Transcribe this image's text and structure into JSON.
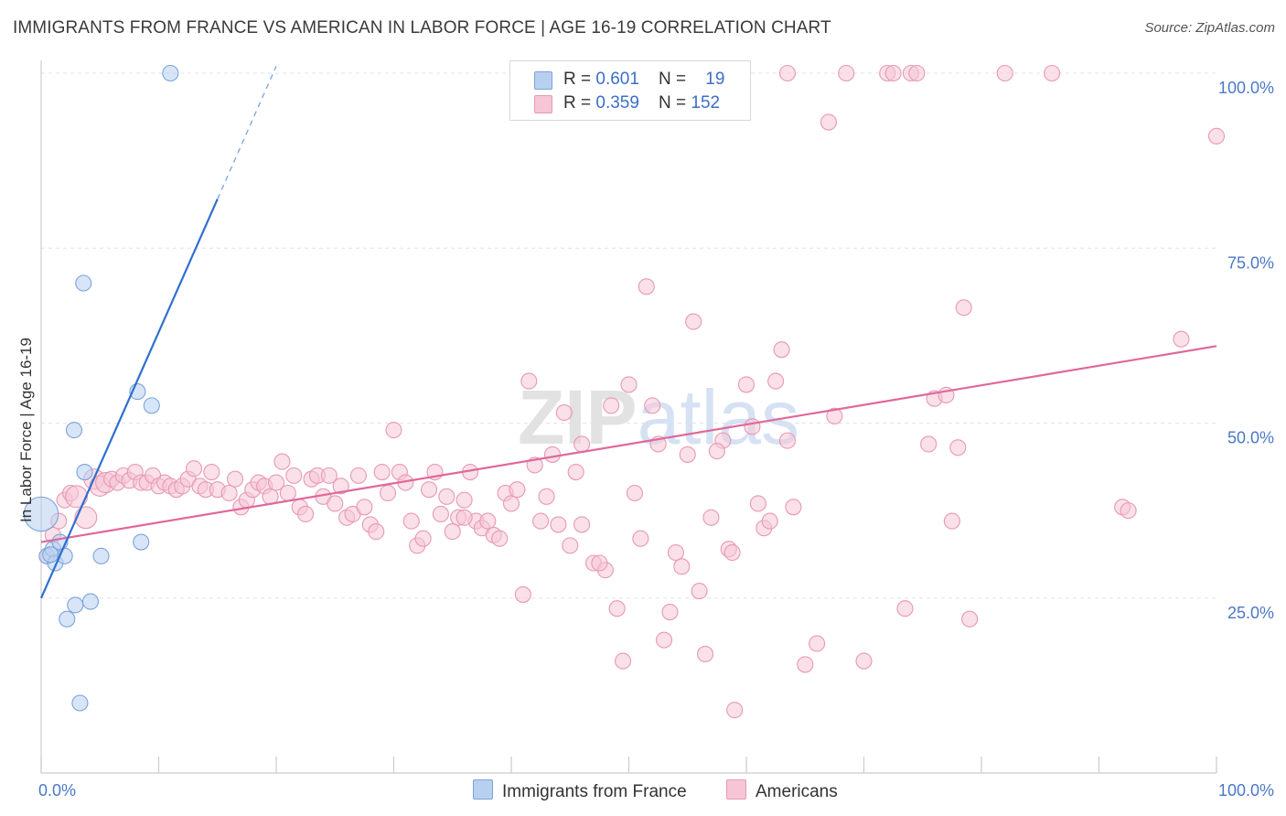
{
  "title": "IMMIGRANTS FROM FRANCE VS AMERICAN IN LABOR FORCE | AGE 16-19 CORRELATION CHART",
  "source": "Source: ZipAtlas.com",
  "watermark": "ZIPatlas",
  "colors": {
    "blue_fill": "#b8d0f0",
    "blue_stroke": "#7aa3dc",
    "blue_line": "#2f6fcf",
    "pink_fill": "#f6c6d6",
    "pink_stroke": "#e898b4",
    "pink_line": "#e0689a",
    "accent_text": "#3b6fc8"
  },
  "legend": {
    "rows": [
      {
        "r_label": "R = ",
        "r_value": "0.601",
        "n_label": "N = ",
        "n_value": "19",
        "color": "blue"
      },
      {
        "r_label": "R = ",
        "r_value": "0.359",
        "n_label": "N = ",
        "n_value": "152",
        "color": "pink"
      }
    ]
  },
  "bottom_legend": {
    "series1": "Immigrants from France",
    "series2": "Americans"
  },
  "chart_data": {
    "type": "scatter",
    "xlabel": "",
    "ylabel": "In Labor Force | Age 16-19",
    "xlim": [
      0,
      100
    ],
    "ylim": [
      0,
      105
    ],
    "x_tick_labels": [
      "0.0%",
      "100.0%"
    ],
    "y_tick_labels": [
      "25.0%",
      "50.0%",
      "75.0%",
      "100.0%"
    ],
    "y_ticks": [
      25,
      50,
      75,
      100
    ],
    "grid": true,
    "legend_position": "top-center",
    "series": [
      {
        "name": "Immigrants from France",
        "color": "blue",
        "trend": {
          "x0": 0.0,
          "y0": 25.0,
          "x1": 15.0,
          "y1": 82.0,
          "dash_x1": 20.0,
          "dash_y1": 101.0
        },
        "points": [
          [
            0.0,
            37.0,
            2.2
          ],
          [
            0.5,
            31.0,
            1
          ],
          [
            1.0,
            32.0,
            1
          ],
          [
            1.2,
            30.0,
            1
          ],
          [
            1.6,
            33.0,
            1
          ],
          [
            2.0,
            31.0,
            1
          ],
          [
            2.2,
            22.0,
            1
          ],
          [
            2.8,
            49.0,
            1
          ],
          [
            2.9,
            24.0,
            1
          ],
          [
            3.3,
            10.0,
            1
          ],
          [
            3.6,
            70.0,
            1
          ],
          [
            3.7,
            43.0,
            1
          ],
          [
            4.2,
            24.5,
            1
          ],
          [
            5.1,
            31.0,
            1
          ],
          [
            8.2,
            54.5,
            1
          ],
          [
            8.5,
            33.0,
            1
          ],
          [
            9.4,
            52.5,
            1
          ],
          [
            11.0,
            100.0,
            1
          ],
          [
            0.8,
            31.2,
            1
          ]
        ]
      },
      {
        "name": "Americans",
        "color": "pink",
        "trend": {
          "x0": 0.0,
          "y0": 33.0,
          "x1": 100.0,
          "y1": 61.0
        },
        "points": [
          [
            0.5,
            31.0,
            1
          ],
          [
            1.0,
            34.0,
            1
          ],
          [
            1.5,
            36.0,
            1
          ],
          [
            2.0,
            39.0,
            1
          ],
          [
            2.5,
            40.0,
            1
          ],
          [
            3.0,
            39.5,
            1.4
          ],
          [
            3.8,
            36.5,
            1.4
          ],
          [
            4.5,
            42.0,
            1.3
          ],
          [
            5.0,
            41.0,
            1.3
          ],
          [
            5.5,
            41.5,
            1.3
          ],
          [
            6.0,
            42.0,
            1
          ],
          [
            6.5,
            41.5,
            1
          ],
          [
            7.0,
            42.5,
            1
          ],
          [
            7.5,
            41.8,
            1
          ],
          [
            8.0,
            43.0,
            1
          ],
          [
            8.5,
            41.5,
            1
          ],
          [
            9.0,
            41.5,
            1
          ],
          [
            9.5,
            42.5,
            1
          ],
          [
            10.0,
            41.0,
            1
          ],
          [
            10.5,
            41.5,
            1
          ],
          [
            11.0,
            41.0,
            1
          ],
          [
            11.5,
            40.5,
            1
          ],
          [
            12.0,
            41.0,
            1
          ],
          [
            12.5,
            42.0,
            1
          ],
          [
            13.0,
            43.5,
            1
          ],
          [
            13.5,
            41.0,
            1
          ],
          [
            14.0,
            40.5,
            1
          ],
          [
            14.5,
            43.0,
            1
          ],
          [
            15.0,
            40.5,
            1
          ],
          [
            16.0,
            40.0,
            1
          ],
          [
            16.5,
            42.0,
            1
          ],
          [
            17.0,
            38.0,
            1
          ],
          [
            17.5,
            39.0,
            1
          ],
          [
            18.0,
            40.5,
            1
          ],
          [
            18.5,
            41.5,
            1
          ],
          [
            19.0,
            41.0,
            1
          ],
          [
            19.5,
            39.5,
            1
          ],
          [
            20.0,
            41.5,
            1
          ],
          [
            20.5,
            44.5,
            1
          ],
          [
            21.0,
            40.0,
            1
          ],
          [
            21.5,
            42.5,
            1
          ],
          [
            22.0,
            38.0,
            1
          ],
          [
            22.5,
            37.0,
            1
          ],
          [
            23.0,
            42.0,
            1
          ],
          [
            23.5,
            42.5,
            1
          ],
          [
            24.0,
            39.5,
            1
          ],
          [
            24.5,
            42.5,
            1
          ],
          [
            25.0,
            38.5,
            1
          ],
          [
            25.5,
            41.0,
            1
          ],
          [
            26.0,
            36.5,
            1
          ],
          [
            26.5,
            37.0,
            1
          ],
          [
            27.0,
            42.5,
            1
          ],
          [
            27.5,
            38.0,
            1
          ],
          [
            28.0,
            35.5,
            1
          ],
          [
            28.5,
            34.5,
            1
          ],
          [
            29.0,
            43.0,
            1
          ],
          [
            29.5,
            40.0,
            1
          ],
          [
            30.0,
            49.0,
            1
          ],
          [
            30.5,
            43.0,
            1
          ],
          [
            31.0,
            41.5,
            1
          ],
          [
            31.5,
            36.0,
            1
          ],
          [
            32.0,
            32.5,
            1
          ],
          [
            32.5,
            33.5,
            1
          ],
          [
            33.0,
            40.5,
            1
          ],
          [
            33.5,
            43.0,
            1
          ],
          [
            34.0,
            37.0,
            1
          ],
          [
            34.5,
            39.5,
            1
          ],
          [
            35.0,
            34.5,
            1
          ],
          [
            35.5,
            36.5,
            1
          ],
          [
            36.0,
            39.0,
            1
          ],
          [
            36.5,
            43.0,
            1
          ],
          [
            37.0,
            36.0,
            1
          ],
          [
            37.5,
            35.0,
            1
          ],
          [
            38.0,
            36.0,
            1
          ],
          [
            38.5,
            34.0,
            1
          ],
          [
            39.0,
            33.5,
            1
          ],
          [
            39.5,
            40.0,
            1
          ],
          [
            40.0,
            38.5,
            1
          ],
          [
            40.5,
            40.5,
            1
          ],
          [
            41.0,
            25.5,
            1
          ],
          [
            41.5,
            56.0,
            1
          ],
          [
            42.0,
            44.0,
            1
          ],
          [
            42.5,
            36.0,
            1
          ],
          [
            43.0,
            39.5,
            1
          ],
          [
            43.5,
            45.5,
            1
          ],
          [
            44.0,
            35.5,
            1
          ],
          [
            44.5,
            51.5,
            1
          ],
          [
            45.0,
            32.5,
            1
          ],
          [
            45.5,
            43.0,
            1
          ],
          [
            46.0,
            35.5,
            1
          ],
          [
            47.0,
            30.0,
            1
          ],
          [
            48.0,
            29.0,
            1
          ],
          [
            48.5,
            52.5,
            1
          ],
          [
            49.0,
            23.5,
            1
          ],
          [
            49.5,
            16.0,
            1
          ],
          [
            50.0,
            55.5,
            1
          ],
          [
            50.5,
            40.0,
            1
          ],
          [
            51.0,
            33.5,
            1
          ],
          [
            51.5,
            69.5,
            1
          ],
          [
            52.0,
            52.5,
            1
          ],
          [
            52.5,
            47.0,
            1
          ],
          [
            53.0,
            19.0,
            1
          ],
          [
            53.5,
            23.0,
            1
          ],
          [
            54.0,
            31.5,
            1
          ],
          [
            54.5,
            29.5,
            1
          ],
          [
            55.0,
            45.5,
            1
          ],
          [
            55.5,
            64.5,
            1
          ],
          [
            56.0,
            26.0,
            1
          ],
          [
            56.5,
            17.0,
            1
          ],
          [
            57.0,
            36.5,
            1
          ],
          [
            58.0,
            47.5,
            1
          ],
          [
            58.5,
            32.0,
            1
          ],
          [
            59.0,
            9.0,
            1
          ],
          [
            60.0,
            55.5,
            1
          ],
          [
            60.5,
            49.5,
            1
          ],
          [
            61.0,
            38.5,
            1
          ],
          [
            61.5,
            35.0,
            1
          ],
          [
            62.0,
            36.0,
            1
          ],
          [
            62.5,
            56.0,
            1
          ],
          [
            63.0,
            60.5,
            1
          ],
          [
            63.5,
            47.5,
            1
          ],
          [
            64.0,
            38.0,
            1
          ],
          [
            65.0,
            15.5,
            1
          ],
          [
            66.0,
            18.5,
            1
          ],
          [
            67.0,
            93.0,
            1
          ],
          [
            67.5,
            51.0,
            1
          ],
          [
            70.0,
            16.0,
            1
          ],
          [
            72.0,
            100.0,
            1
          ],
          [
            72.5,
            100.0,
            1
          ],
          [
            73.5,
            23.5,
            1
          ],
          [
            74.0,
            100.0,
            1
          ],
          [
            74.5,
            100.0,
            1
          ],
          [
            76.0,
            53.5,
            1
          ],
          [
            77.0,
            54.0,
            1
          ],
          [
            77.5,
            36.0,
            1
          ],
          [
            78.5,
            66.5,
            1
          ],
          [
            79.0,
            22.0,
            1
          ],
          [
            82.0,
            100.0,
            1
          ],
          [
            86.0,
            100.0,
            1
          ],
          [
            92.0,
            38.0,
            1
          ],
          [
            92.5,
            37.5,
            1
          ],
          [
            97.0,
            62.0,
            1
          ],
          [
            100.0,
            91.0,
            1
          ],
          [
            46.0,
            47.0,
            1
          ],
          [
            63.5,
            100.0,
            1
          ],
          [
            68.5,
            100.0,
            1
          ],
          [
            78.0,
            46.5,
            1
          ],
          [
            75.5,
            47.0,
            1
          ],
          [
            57.5,
            46.0,
            1
          ],
          [
            36.0,
            36.5,
            1
          ],
          [
            47.5,
            30.0,
            1
          ],
          [
            58.8,
            31.5,
            1
          ]
        ]
      }
    ]
  }
}
